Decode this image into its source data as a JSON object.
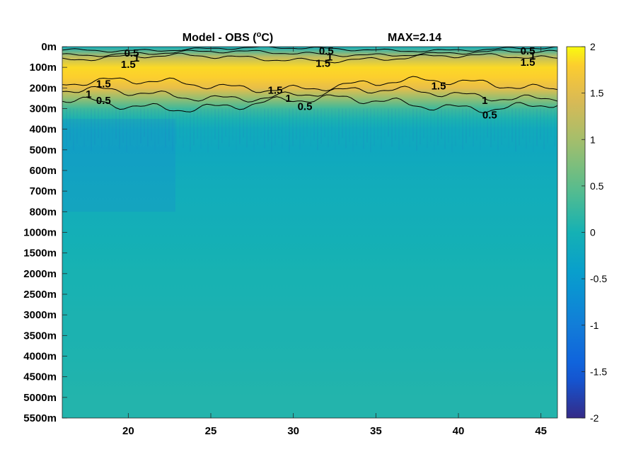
{
  "chart_data": {
    "type": "heatmap",
    "title": "Model - OBS (°C)",
    "title_parts": {
      "prefix": "Model - OBS (",
      "superscript": "o",
      "suffix": "C)"
    },
    "annotation": "MAX=2.14",
    "xlabel": "",
    "ylabel": "",
    "xlim": [
      16,
      46
    ],
    "x_ticks": [
      20,
      25,
      30,
      35,
      40,
      45
    ],
    "y_ticks": [
      "0m",
      "100m",
      "200m",
      "300m",
      "400m",
      "500m",
      "600m",
      "700m",
      "800m",
      "1000m",
      "1500m",
      "2000m",
      "2500m",
      "3000m",
      "3500m",
      "4000m",
      "4500m",
      "5000m",
      "5500m"
    ],
    "colorbar": {
      "range": [
        -2,
        2
      ],
      "ticks": [
        "2",
        "1.5",
        "1",
        "0.5",
        "0",
        "-0.5",
        "-1",
        "-1.5",
        "-2"
      ],
      "colormap": "parula"
    },
    "profile_depths": [
      "0m",
      "50m",
      "100m",
      "150m",
      "200m",
      "250m",
      "300m",
      "350m",
      "400m",
      "500m",
      "600m",
      "700m",
      "800m",
      "1000m",
      "1500m",
      "2000m",
      "2500m",
      "3000m",
      "3500m",
      "4000m",
      "4500m",
      "5000m",
      "5500m"
    ],
    "profile_values": [
      -0.1,
      1.2,
      1.85,
      1.8,
      1.55,
      0.9,
      0.3,
      0.05,
      -0.15,
      -0.2,
      -0.15,
      -0.1,
      -0.08,
      -0.05,
      0.0,
      0.02,
      0.03,
      0.05,
      0.05,
      0.06,
      0.08,
      0.1,
      0.1
    ],
    "contour_levels": [
      0.5,
      1,
      1.5
    ],
    "contour_labels": [
      {
        "text": "0.5",
        "x": 20.2,
        "depth": "30m"
      },
      {
        "text": "1",
        "x": 20.5,
        "depth": "55m"
      },
      {
        "text": "1.5",
        "x": 20.0,
        "depth": "85m"
      },
      {
        "text": "0.5",
        "x": 32.0,
        "depth": "20m"
      },
      {
        "text": "1",
        "x": 32.2,
        "depth": "50m"
      },
      {
        "text": "1.5",
        "x": 31.8,
        "depth": "80m"
      },
      {
        "text": "0.5",
        "x": 44.2,
        "depth": "20m"
      },
      {
        "text": "1",
        "x": 44.5,
        "depth": "45m"
      },
      {
        "text": "1.5",
        "x": 44.2,
        "depth": "75m"
      },
      {
        "text": "1.5",
        "x": 18.5,
        "depth": "180m"
      },
      {
        "text": "1",
        "x": 17.6,
        "depth": "230m"
      },
      {
        "text": "0.5",
        "x": 18.5,
        "depth": "260m"
      },
      {
        "text": "1.5",
        "x": 28.9,
        "depth": "210m"
      },
      {
        "text": "1",
        "x": 29.7,
        "depth": "250m"
      },
      {
        "text": "0.5",
        "x": 30.7,
        "depth": "290m"
      },
      {
        "text": "1.5",
        "x": 38.8,
        "depth": "190m"
      },
      {
        "text": "1",
        "x": 41.6,
        "depth": "260m"
      },
      {
        "text": "0.5",
        "x": 41.9,
        "depth": "330m"
      }
    ]
  }
}
